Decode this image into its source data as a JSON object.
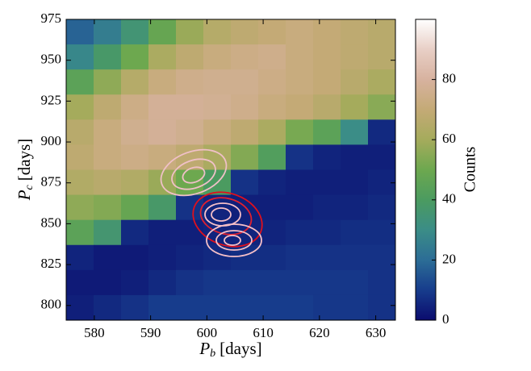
{
  "chart_data": {
    "type": "heatmap",
    "x_label": {
      "symbol": "P",
      "subscript": "b",
      "unit": "[days]"
    },
    "y_label": {
      "symbol": "P",
      "subscript": "c",
      "unit": "[days]"
    },
    "colorbar_label": "Counts",
    "xlim": [
      575,
      633.5
    ],
    "ylim": [
      791,
      975
    ],
    "xticks": [
      580,
      590,
      600,
      610,
      620,
      630
    ],
    "yticks": [
      800,
      825,
      850,
      875,
      900,
      925,
      950,
      975
    ],
    "zlim": [
      0,
      100
    ],
    "zticks": [
      0,
      20,
      40,
      60,
      80
    ],
    "colormap": [
      "#0b0c6e",
      "#173c8c",
      "#2c6d96",
      "#3b8d87",
      "#4b9b60",
      "#6da84f",
      "#a5ab5c",
      "#c4aa76",
      "#d7b29f",
      "#e8cfc6",
      "#ffffff"
    ],
    "z": [
      [
        18,
        25,
        35,
        48,
        58,
        65,
        68,
        70,
        72,
        70,
        68,
        66
      ],
      [
        28,
        38,
        50,
        62,
        68,
        72,
        74,
        75,
        72,
        70,
        68,
        66
      ],
      [
        45,
        56,
        65,
        72,
        75,
        76,
        76,
        74,
        72,
        70,
        66,
        62
      ],
      [
        60,
        68,
        74,
        78,
        78,
        77,
        75,
        72,
        70,
        66,
        60,
        55
      ],
      [
        66,
        72,
        76,
        78,
        76,
        72,
        68,
        62,
        52,
        45,
        30,
        6
      ],
      [
        68,
        72,
        74,
        72,
        68,
        62,
        54,
        42,
        8,
        5,
        4,
        4
      ],
      [
        64,
        66,
        64,
        58,
        50,
        40,
        8,
        5,
        4,
        4,
        4,
        5
      ],
      [
        56,
        54,
        48,
        38,
        8,
        5,
        4,
        4,
        4,
        5,
        5,
        6
      ],
      [
        45,
        36,
        6,
        4,
        4,
        5,
        5,
        5,
        6,
        6,
        7,
        7
      ],
      [
        5,
        3,
        3,
        4,
        5,
        6,
        7,
        7,
        8,
        8,
        8,
        8
      ],
      [
        3,
        3,
        4,
        6,
        8,
        9,
        9,
        9,
        9,
        9,
        9,
        8
      ],
      [
        4,
        6,
        8,
        10,
        10,
        10,
        10,
        10,
        10,
        9,
        9,
        8
      ]
    ]
  }
}
